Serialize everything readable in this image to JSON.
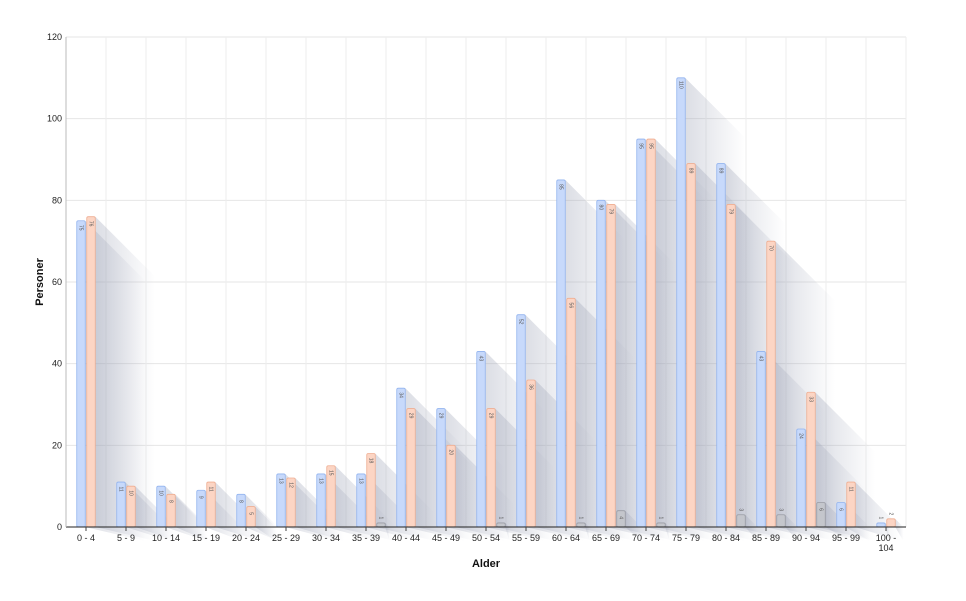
{
  "chart_data": {
    "type": "bar",
    "xlabel": "Alder",
    "ylabel": "Personer",
    "ylim": [
      0,
      120
    ],
    "yticks": [
      0,
      20,
      40,
      60,
      80,
      100,
      120
    ],
    "grid": true,
    "categories": [
      "0 - 4",
      "5 - 9",
      "10 - 14",
      "15 - 19",
      "20 - 24",
      "25 - 29",
      "30 - 34",
      "35 - 39",
      "40 - 44",
      "45 - 49",
      "50 - 54",
      "55 - 59",
      "60 - 64",
      "65 - 69",
      "70 - 74",
      "75 - 79",
      "80 - 84",
      "85 - 89",
      "90 - 94",
      "95 - 99",
      "100 - 104"
    ],
    "series": [
      {
        "values": [
          75,
          11,
          10,
          9,
          8,
          13,
          13,
          13,
          34,
          29,
          43,
          52,
          85,
          80,
          95,
          110,
          89,
          43,
          24,
          6,
          1
        ],
        "color": "#c7d9fb",
        "stroke": "#93b4ef"
      },
      {
        "values": [
          76,
          10,
          8,
          11,
          5,
          12,
          15,
          18,
          29,
          20,
          29,
          36,
          56,
          79,
          95,
          89,
          79,
          70,
          33,
          11,
          2
        ],
        "color": "#fcd5c4",
        "stroke": "#efae92"
      },
      {
        "values": [
          0,
          0,
          0,
          0,
          0,
          0,
          0,
          1,
          0,
          0,
          1,
          0,
          1,
          4,
          1,
          0,
          3,
          3,
          6,
          0,
          0
        ],
        "color": "#c4c6cc",
        "stroke": "#9a9ca4"
      }
    ]
  }
}
